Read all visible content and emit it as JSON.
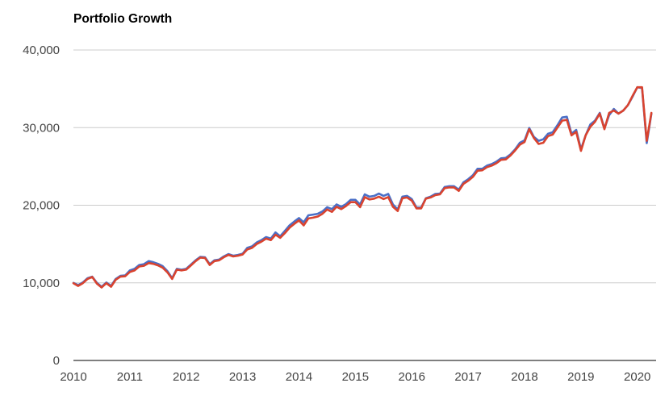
{
  "chart_data": {
    "type": "line",
    "title": "Portfolio Growth",
    "xlabel": "",
    "ylabel": "",
    "ylim": [
      0,
      40000
    ],
    "xlim": [
      "2010-01",
      "2020-05"
    ],
    "y_ticks": [
      "0",
      "10,000",
      "20,000",
      "30,000",
      "40,000"
    ],
    "y_tick_values": [
      0,
      10000,
      20000,
      30000,
      40000
    ],
    "x_ticks": [
      "2010",
      "2011",
      "2012",
      "2013",
      "2014",
      "2015",
      "2016",
      "2017",
      "2018",
      "2019",
      "2020"
    ],
    "grid": "horizontal",
    "legend": "none",
    "colors": {
      "series_1": "#4a6fc7",
      "series_2": "#d9432f",
      "grid": "#cccccc",
      "axis": "#333333"
    },
    "x": [
      "2010-01",
      "2010-02",
      "2010-03",
      "2010-04",
      "2010-05",
      "2010-06",
      "2010-07",
      "2010-08",
      "2010-09",
      "2010-10",
      "2010-11",
      "2010-12",
      "2011-01",
      "2011-02",
      "2011-03",
      "2011-04",
      "2011-05",
      "2011-06",
      "2011-07",
      "2011-08",
      "2011-09",
      "2011-10",
      "2011-11",
      "2011-12",
      "2012-01",
      "2012-02",
      "2012-03",
      "2012-04",
      "2012-05",
      "2012-06",
      "2012-07",
      "2012-08",
      "2012-09",
      "2012-10",
      "2012-11",
      "2012-12",
      "2013-01",
      "2013-02",
      "2013-03",
      "2013-04",
      "2013-05",
      "2013-06",
      "2013-07",
      "2013-08",
      "2013-09",
      "2013-10",
      "2013-11",
      "2013-12",
      "2014-01",
      "2014-02",
      "2014-03",
      "2014-04",
      "2014-05",
      "2014-06",
      "2014-07",
      "2014-08",
      "2014-09",
      "2014-10",
      "2014-11",
      "2014-12",
      "2015-01",
      "2015-02",
      "2015-03",
      "2015-04",
      "2015-05",
      "2015-06",
      "2015-07",
      "2015-08",
      "2015-09",
      "2015-10",
      "2015-11",
      "2015-12",
      "2016-01",
      "2016-02",
      "2016-03",
      "2016-04",
      "2016-05",
      "2016-06",
      "2016-07",
      "2016-08",
      "2016-09",
      "2016-10",
      "2016-11",
      "2016-12",
      "2017-01",
      "2017-02",
      "2017-03",
      "2017-04",
      "2017-05",
      "2017-06",
      "2017-07",
      "2017-08",
      "2017-09",
      "2017-10",
      "2017-11",
      "2017-12",
      "2018-01",
      "2018-02",
      "2018-03",
      "2018-04",
      "2018-05",
      "2018-06",
      "2018-07",
      "2018-08",
      "2018-09",
      "2018-10",
      "2018-11",
      "2018-12",
      "2019-01",
      "2019-02",
      "2019-03",
      "2019-04",
      "2019-05",
      "2019-06",
      "2019-07",
      "2019-08",
      "2019-09",
      "2019-10",
      "2019-11",
      "2019-12",
      "2020-01",
      "2020-02",
      "2020-03",
      "2020-04"
    ],
    "series": [
      {
        "values": [
          10000,
          9700,
          10050,
          10600,
          10800,
          10000,
          9500,
          10050,
          9600,
          10500,
          10900,
          10950,
          11600,
          11800,
          12300,
          12400,
          12800,
          12650,
          12450,
          12150,
          11500,
          10600,
          11800,
          11700,
          11800,
          12350,
          12900,
          13350,
          13300,
          12400,
          12900,
          13000,
          13400,
          13700,
          13500,
          13600,
          13750,
          14500,
          14700,
          15200,
          15500,
          15900,
          15700,
          16500,
          16000,
          16700,
          17400,
          17900,
          18350,
          17800,
          18700,
          18800,
          18900,
          19200,
          19750,
          19500,
          20100,
          19800,
          20150,
          20700,
          20700,
          20100,
          21400,
          21100,
          21200,
          21500,
          21200,
          21450,
          20100,
          19450,
          21100,
          21200,
          20800,
          19700,
          19700,
          20900,
          21100,
          21450,
          21500,
          22350,
          22450,
          22450,
          22000,
          22950,
          23350,
          23850,
          24700,
          24700,
          25100,
          25300,
          25600,
          26050,
          26100,
          26550,
          27200,
          28050,
          28350,
          29950,
          28800,
          28300,
          28500,
          29200,
          29400,
          30300,
          31300,
          31400,
          29200,
          29700,
          27200,
          29000,
          30400,
          30900,
          31900,
          29900,
          31600,
          32400,
          31800,
          32200,
          32900,
          34000,
          35200,
          35100,
          28000,
          31800
        ]
      },
      {
        "values": [
          9950,
          9600,
          9950,
          10500,
          10750,
          9900,
          9400,
          9950,
          9500,
          10400,
          10800,
          10850,
          11400,
          11600,
          12100,
          12200,
          12550,
          12450,
          12250,
          11950,
          11350,
          10500,
          11700,
          11600,
          11700,
          12250,
          12800,
          13250,
          13200,
          12300,
          12800,
          12900,
          13300,
          13600,
          13400,
          13500,
          13650,
          14300,
          14500,
          15000,
          15300,
          15700,
          15500,
          16200,
          15800,
          16400,
          17100,
          17600,
          18050,
          17400,
          18300,
          18400,
          18550,
          18900,
          19450,
          19150,
          19800,
          19500,
          19900,
          20400,
          20400,
          19750,
          21050,
          20750,
          20850,
          21100,
          20800,
          21050,
          19800,
          19250,
          20900,
          21000,
          20600,
          19600,
          19600,
          20850,
          21000,
          21300,
          21400,
          22200,
          22300,
          22300,
          21850,
          22750,
          23150,
          23650,
          24450,
          24500,
          24900,
          25100,
          25400,
          25850,
          25900,
          26400,
          27050,
          27800,
          28150,
          29800,
          28650,
          27900,
          28050,
          28900,
          29100,
          30000,
          30900,
          31000,
          29000,
          29450,
          27000,
          29000,
          30100,
          30750,
          31800,
          29800,
          31900,
          32200,
          31800,
          32200,
          32900,
          34100,
          35200,
          35200,
          28300,
          31900
        ]
      }
    ]
  }
}
